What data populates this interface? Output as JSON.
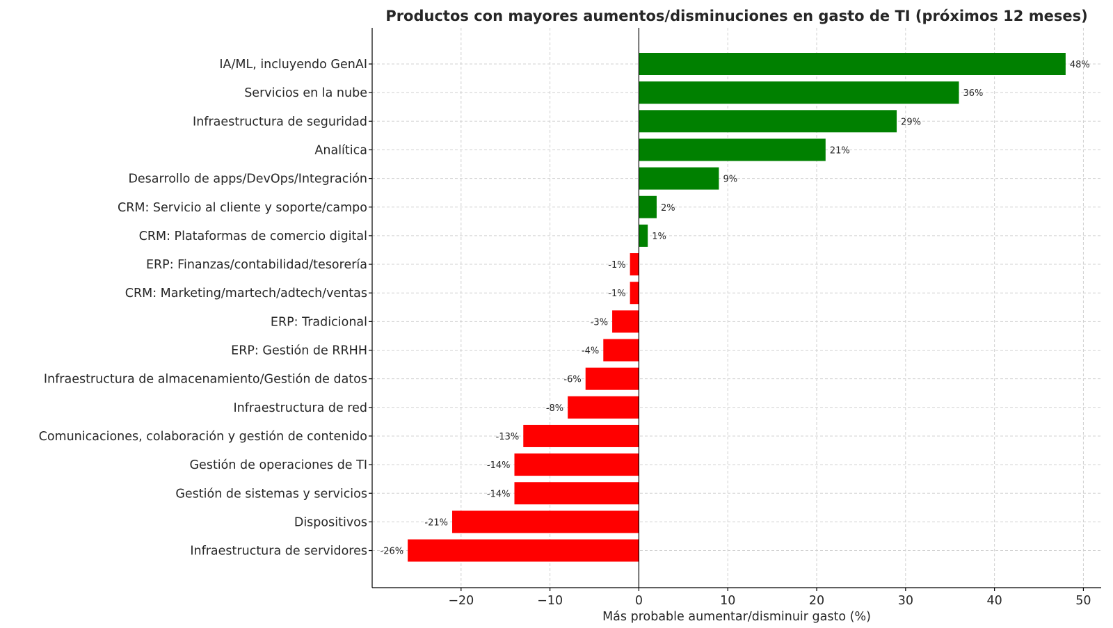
{
  "chart_data": {
    "type": "bar",
    "orientation": "horizontal",
    "title": "Productos con mayores aumentos/disminuciones en gasto de TI (próximos 12 meses)",
    "xlabel": "Más probable aumentar/disminuir gasto (%)",
    "ylabel": "",
    "xlim": [
      -30,
      52
    ],
    "xticks": [
      -20,
      -10,
      0,
      10,
      20,
      30,
      40,
      50
    ],
    "xtick_labels": [
      "−20",
      "−10",
      "0",
      "10",
      "20",
      "30",
      "40",
      "50"
    ],
    "grid": true,
    "colors": {
      "positive": "#008000",
      "negative": "#ff0000"
    },
    "categories": [
      "IA/ML, incluyendo GenAI",
      "Servicios en la nube",
      "Infraestructura de seguridad",
      "Analítica",
      "Desarrollo de apps/DevOps/Integración",
      "CRM: Servicio al cliente y soporte/campo",
      "CRM: Plataformas de comercio digital",
      "ERP: Finanzas/contabilidad/tesorería",
      "CRM: Marketing/martech/adtech/ventas",
      "ERP: Tradicional",
      "ERP: Gestión de RRHH",
      "Infraestructura de almacenamiento/Gestión de datos",
      "Infraestructura de red",
      "Comunicaciones, colaboración y gestión de contenido",
      "Gestión de operaciones de TI",
      "Gestión de sistemas y servicios",
      "Dispositivos",
      "Infraestructura de servidores"
    ],
    "values": [
      48,
      36,
      29,
      21,
      9,
      2,
      1,
      -1,
      -1,
      -3,
      -4,
      -6,
      -8,
      -13,
      -14,
      -14,
      -21,
      -26
    ],
    "value_labels": [
      "48%",
      "36%",
      "29%",
      "21%",
      "9%",
      "2%",
      "1%",
      "-1%",
      "-1%",
      "-3%",
      "-4%",
      "-6%",
      "-8%",
      "-13%",
      "-14%",
      "-14%",
      "-21%",
      "-26%"
    ]
  }
}
